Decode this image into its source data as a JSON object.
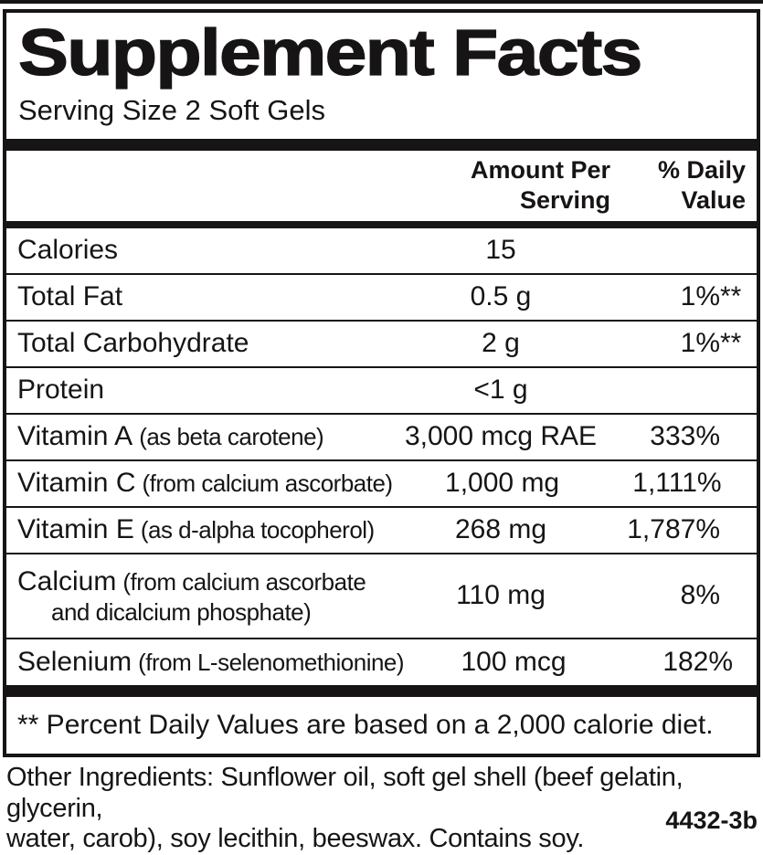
{
  "title": "Supplement Facts",
  "serving_size": "Serving Size 2 Soft Gels",
  "table": {
    "headers": {
      "amount_line1": "Amount Per",
      "amount_line2": "Serving",
      "dv_line1": "% Daily",
      "dv_line2": "Value"
    },
    "rows": [
      {
        "name": "Calories",
        "detail": "",
        "amount": "15",
        "dv": "",
        "dv_note": ""
      },
      {
        "name": "Total Fat",
        "detail": "",
        "amount": "0.5 g",
        "dv": "1%",
        "dv_note": "**"
      },
      {
        "name": "Total Carbohydrate",
        "detail": "",
        "amount": "2 g",
        "dv": "1%",
        "dv_note": "**"
      },
      {
        "name": "Protein",
        "detail": "",
        "amount": "<1 g",
        "dv": "",
        "dv_note": ""
      },
      {
        "name": "Vitamin A",
        "detail": "(as beta carotene)",
        "amount": "3,000 mcg RAE",
        "dv": "333%",
        "dv_note": ""
      },
      {
        "name": "Vitamin C",
        "detail": "(from calcium ascorbate)",
        "amount": "1,000 mg",
        "dv": "1,111%",
        "dv_note": ""
      },
      {
        "name": "Vitamin E",
        "detail": "(as d-alpha tocopherol)",
        "amount": "268 mg",
        "dv": "1,787%",
        "dv_note": ""
      },
      {
        "name": "Calcium",
        "detail": "(from calcium ascorbate",
        "detail_line2": "and dicalcium phosphate)",
        "amount": "110 mg",
        "dv": "8%",
        "dv_note": ""
      },
      {
        "name": "Selenium",
        "detail": "(from L-selenomethionine)",
        "amount": "100 mcg",
        "dv": "182%",
        "dv_note": ""
      }
    ]
  },
  "footnote": "** Percent Daily Values are based on a 2,000 calorie diet.",
  "other_ingredients": {
    "line1": "Other Ingredients: Sunflower oil, soft gel shell (beef gelatin, glycerin,",
    "line2": "water, carob), soy lecithin, beeswax. Contains soy."
  },
  "product_code": "4432-3b",
  "colors": {
    "ink": "#171415",
    "background": "#ffffff"
  }
}
